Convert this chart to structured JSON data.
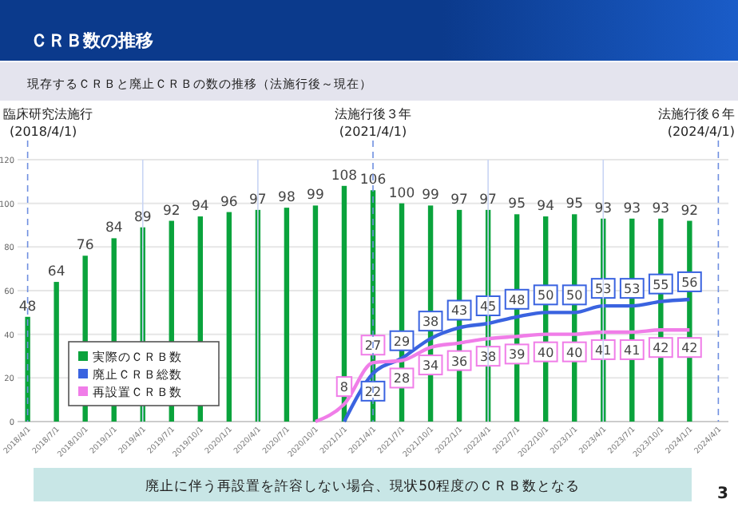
{
  "chart_data": {
    "type": "bar",
    "title": "ＣＲＢ数の推移",
    "subtitle": "現存するＣＲＢと廃止ＣＲＢの数の推移（法施行後～現在）",
    "categories": [
      "2018/4/1",
      "2018/7/1",
      "2018/10/1",
      "2019/1/1",
      "2019/4/1",
      "2019/7/1",
      "2019/10/1",
      "2020/1/1",
      "2020/4/1",
      "2020/7/1",
      "2020/10/1",
      "2021/1/1",
      "2021/4/1",
      "2021/7/1",
      "2021/10/1",
      "2022/1/1",
      "2022/4/1",
      "2022/7/1",
      "2022/10/1",
      "2023/1/1",
      "2023/4/1",
      "2023/7/1",
      "2023/10/1",
      "2024/1/1",
      "2024/4/1"
    ],
    "series": [
      {
        "name": "実際のＣＲＢ数",
        "color": "#0aa33c",
        "values": [
          48,
          64,
          76,
          84,
          89,
          92,
          94,
          96,
          97,
          98,
          99,
          108,
          106,
          100,
          99,
          97,
          97,
          95,
          94,
          95,
          93,
          93,
          93,
          92,
          null
        ],
        "value_labels": [
          "48",
          "64",
          "76",
          "84",
          "89",
          "92",
          "94",
          "96",
          "97",
          "98",
          "99",
          "108",
          "106",
          "100",
          "99",
          "97",
          "97",
          "95",
          "94",
          "95",
          "93",
          "93",
          "93",
          "92",
          null
        ]
      },
      {
        "name": "廃止ＣＲＢ総数",
        "type": "line",
        "color": "#3a63e0",
        "values": [
          null,
          null,
          null,
          null,
          null,
          null,
          null,
          null,
          null,
          null,
          null,
          0,
          22,
          29,
          38,
          43,
          45,
          48,
          50,
          50,
          53,
          53,
          55,
          56,
          null
        ],
        "value_labels": [
          null,
          null,
          null,
          null,
          null,
          null,
          null,
          null,
          null,
          null,
          null,
          null,
          "22",
          "29",
          "38",
          "43",
          "45",
          "48",
          "50",
          "50",
          "53",
          "53",
          "55",
          "56",
          null
        ]
      },
      {
        "name": "再設置ＣＲＢ数",
        "type": "line",
        "color": "#f07de8",
        "values": [
          null,
          null,
          null,
          null,
          null,
          null,
          null,
          null,
          null,
          null,
          0,
          8,
          27,
          28,
          34,
          36,
          38,
          39,
          40,
          40,
          41,
          41,
          42,
          42,
          null
        ],
        "value_labels": [
          null,
          null,
          null,
          null,
          null,
          null,
          null,
          null,
          null,
          null,
          null,
          "8",
          "27",
          "28",
          "34",
          "36",
          "38",
          "39",
          "40",
          "40",
          "41",
          "41",
          "42",
          "42",
          null
        ]
      }
    ],
    "ylim": [
      0,
      120
    ],
    "yticks": [
      0,
      20,
      40,
      60,
      80,
      100,
      120
    ],
    "grid": "y",
    "legend": "bottom left",
    "ref_lines": [
      {
        "axis": "x",
        "value": "2018/4/1",
        "label": "臨床研究法施行\n(2018/4/1)",
        "color": "#6f8fe0",
        "line_style": "dashed"
      },
      {
        "axis": "x",
        "value": "2019/4/1",
        "color": "#c8d4f4",
        "line_style": "solid"
      },
      {
        "axis": "x",
        "value": "2020/4/1",
        "color": "#c8d4f4",
        "line_style": "solid"
      },
      {
        "axis": "x",
        "value": "2021/4/1",
        "label": "法施行後３年\n(2021/4/1)",
        "color": "#6f8fe0",
        "line_style": "dashed"
      },
      {
        "axis": "x",
        "value": "2022/4/1",
        "color": "#c8d4f4",
        "line_style": "solid"
      },
      {
        "axis": "x",
        "value": "2023/4/1",
        "color": "#c8d4f4",
        "line_style": "solid"
      },
      {
        "axis": "x",
        "value": "2024/4/1",
        "label": "法施行後６年\n(2024/4/1)",
        "color": "#6f8fe0",
        "line_style": "dashed"
      }
    ],
    "annotations": [
      "廃止に伴う再設置を許容しない場合、現状50程度のＣＲＢ数となる",
      "3"
    ]
  }
}
